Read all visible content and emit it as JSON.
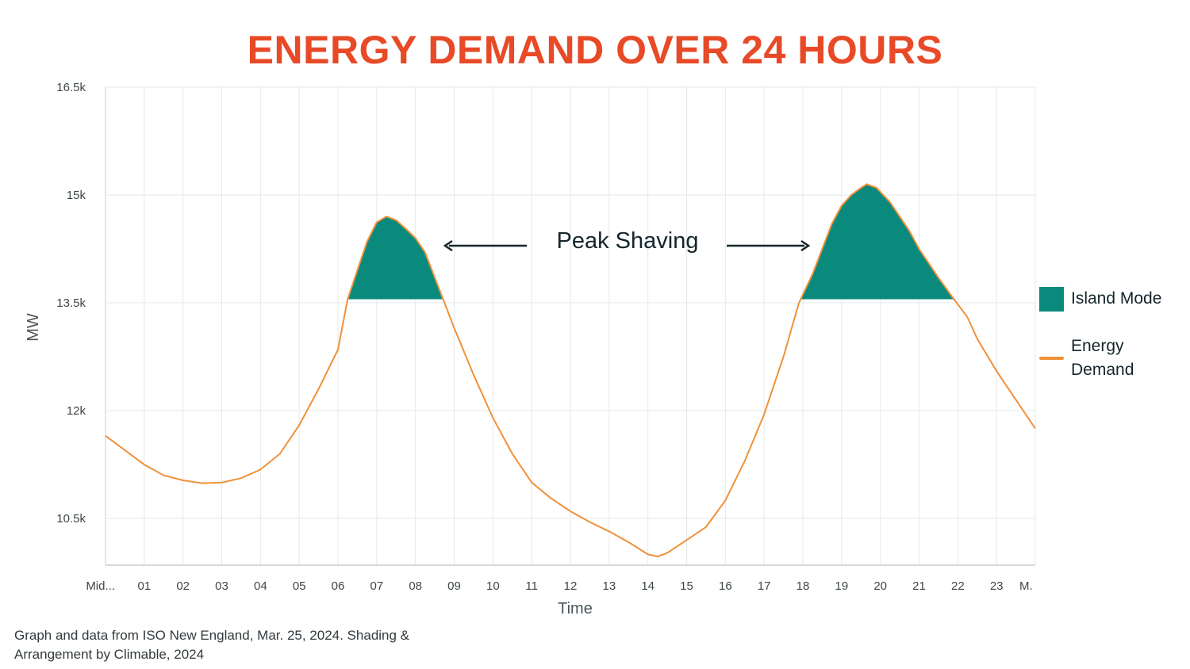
{
  "chart_data": {
    "type": "area",
    "title": "ENERGY DEMAND OVER 24 HOURS",
    "xlabel": "Time",
    "ylabel": "MW",
    "x_ticks": [
      "Mid...",
      "01",
      "02",
      "03",
      "04",
      "05",
      "06",
      "07",
      "08",
      "09",
      "10",
      "11",
      "12",
      "13",
      "14",
      "15",
      "16",
      "17",
      "18",
      "19",
      "20",
      "21",
      "22",
      "23",
      "M."
    ],
    "y_ticks": [
      "10.5k",
      "12k",
      "13.5k",
      "15k",
      "16.5k"
    ],
    "y_tick_values": [
      10500,
      12000,
      13500,
      15000,
      16500
    ],
    "xlim": [
      0,
      24
    ],
    "ylim": [
      9850,
      16500
    ],
    "grid": true,
    "series": [
      {
        "name": "Energy Demand",
        "color": "#f0913a",
        "points": [
          [
            0,
            11650
          ],
          [
            0.5,
            11450
          ],
          [
            1,
            11250
          ],
          [
            1.5,
            11100
          ],
          [
            2,
            11030
          ],
          [
            2.5,
            10990
          ],
          [
            3,
            11000
          ],
          [
            3.5,
            11060
          ],
          [
            4,
            11180
          ],
          [
            4.5,
            11400
          ],
          [
            5,
            11800
          ],
          [
            5.5,
            12300
          ],
          [
            6,
            12850
          ],
          [
            6.25,
            13550
          ],
          [
            6.5,
            13950
          ],
          [
            6.75,
            14350
          ],
          [
            7,
            14620
          ],
          [
            7.25,
            14700
          ],
          [
            7.5,
            14650
          ],
          [
            7.75,
            14530
          ],
          [
            8,
            14400
          ],
          [
            8.25,
            14200
          ],
          [
            8.5,
            13850
          ],
          [
            8.75,
            13500
          ],
          [
            9,
            13150
          ],
          [
            9.5,
            12500
          ],
          [
            10,
            11900
          ],
          [
            10.5,
            11400
          ],
          [
            11,
            11000
          ],
          [
            11.5,
            10780
          ],
          [
            12,
            10600
          ],
          [
            12.5,
            10450
          ],
          [
            13,
            10320
          ],
          [
            13.5,
            10170
          ],
          [
            14,
            10000
          ],
          [
            14.25,
            9970
          ],
          [
            14.5,
            10020
          ],
          [
            15,
            10200
          ],
          [
            15.5,
            10380
          ],
          [
            16,
            10750
          ],
          [
            16.5,
            11300
          ],
          [
            17,
            11950
          ],
          [
            17.5,
            12750
          ],
          [
            17.9,
            13500
          ],
          [
            18.25,
            13900
          ],
          [
            18.5,
            14250
          ],
          [
            18.75,
            14600
          ],
          [
            19,
            14850
          ],
          [
            19.25,
            15000
          ],
          [
            19.5,
            15100
          ],
          [
            19.65,
            15150
          ],
          [
            19.9,
            15100
          ],
          [
            20.25,
            14900
          ],
          [
            20.5,
            14700
          ],
          [
            20.75,
            14500
          ],
          [
            21,
            14250
          ],
          [
            21.5,
            13850
          ],
          [
            21.9,
            13550
          ],
          [
            22.25,
            13300
          ],
          [
            22.5,
            13000
          ],
          [
            23,
            12550
          ],
          [
            23.5,
            12150
          ],
          [
            24,
            11750
          ]
        ]
      }
    ],
    "threshold": 13550,
    "shaded_regions": [
      {
        "name": "Island Mode",
        "color": "#0a8a7d",
        "x_range": [
          6.2,
          8.8
        ]
      },
      {
        "name": "Island Mode",
        "color": "#0a8a7d",
        "x_range": [
          17.95,
          21.95
        ]
      }
    ],
    "annotations": {
      "peak_label": "Peak Shaving"
    },
    "legend": [
      {
        "name": "Island Mode",
        "color": "#0a8a7d",
        "kind": "swatch"
      },
      {
        "name_line1": "Energy",
        "name_line2": "Demand",
        "color": "#f0913a",
        "kind": "line"
      }
    ],
    "legend_position": "right"
  },
  "source_line1": "Graph and data from ISO New England, Mar. 25, 2024. Shading &",
  "source_line2": "Arrangement by Climable, 2024"
}
